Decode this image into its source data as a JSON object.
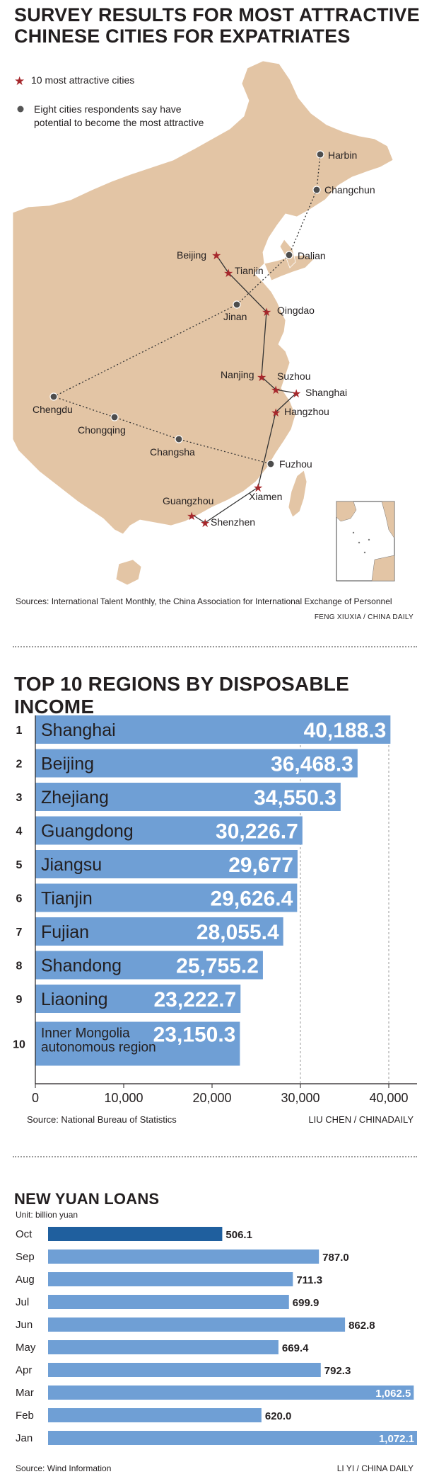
{
  "map_panel": {
    "title_line1": "SURVEY RESULTS FOR MOST ATTRACTIVE",
    "title_line2": "CHINESE CITIES FOR EXPATRIATES",
    "legend": {
      "star_label": "10 most attractive cities",
      "dot_label_line1": "Eight cities respondents say have",
      "dot_label_line2": "potential to become the most attractive"
    },
    "colors": {
      "land": "#e3c5a5",
      "star": "#a6282c",
      "dot": "#555555"
    },
    "star_cities": [
      "Beijing",
      "Tianjin",
      "Qingdao",
      "Nanjing",
      "Suzhou",
      "Shanghai",
      "Hangzhou",
      "Xiamen",
      "Guangzhou",
      "Shenzhen"
    ],
    "dot_cities": [
      "Harbin",
      "Changchun",
      "Dalian",
      "Jinan",
      "Chengdu",
      "Chongqing",
      "Changsha",
      "Fuzhou"
    ],
    "source": "Sources: International Talent Monthly, the China Association for International Exchange of Personnel",
    "credit": "FENG XIUXIA / CHINA DAILY"
  },
  "income_panel": {
    "source": "Source: National Bureau of Statistics",
    "credit": "LIU CHEN / CHINADAILY",
    "chart_data": {
      "type": "bar",
      "orientation": "horizontal",
      "title": "TOP 10 REGIONS BY DISPOSABLE INCOME",
      "ranks": [
        "1",
        "2",
        "3",
        "4",
        "5",
        "6",
        "7",
        "8",
        "9",
        "10"
      ],
      "categories": [
        "Shanghai",
        "Beijing",
        "Zhejiang",
        "Guangdong",
        "Jiangsu",
        "Tianjin",
        "Fujian",
        "Shandong",
        "Liaoning",
        "Inner Mongolia autonomous region"
      ],
      "category_lines": [
        [
          "Shanghai"
        ],
        [
          "Beijing"
        ],
        [
          "Zhejiang"
        ],
        [
          "Guangdong"
        ],
        [
          "Jiangsu"
        ],
        [
          "Tianjin"
        ],
        [
          "Fujian"
        ],
        [
          "Shandong"
        ],
        [
          "Liaoning"
        ],
        [
          "Inner Mongolia",
          "autonomous region"
        ]
      ],
      "values": [
        40188.3,
        36468.3,
        34550.3,
        30226.7,
        29677,
        29626.4,
        28055.4,
        25755.2,
        23222.7,
        23150.3
      ],
      "value_labels": [
        "40,188.3",
        "36,468.3",
        "34,550.3",
        "30,226.7",
        "29,677",
        "29,626.4",
        "28,055.4",
        "25,755.2",
        "23,222.7",
        "23,150.3"
      ],
      "xlim": [
        0,
        40000
      ],
      "xticks": [
        0,
        10000,
        20000,
        30000,
        40000
      ],
      "xtick_labels": [
        "0",
        "10,000",
        "20,000",
        "30,000",
        "40,000"
      ],
      "gridlines": [
        30000,
        40000
      ],
      "bar_color": "#6f9fd5"
    }
  },
  "loans_panel": {
    "unit": "Unit: billion yuan",
    "source": "Source: Wind Information",
    "credit": "LI YI / CHINA DAILY",
    "chart_data": {
      "type": "bar",
      "orientation": "horizontal",
      "title": "NEW YUAN LOANS",
      "categories": [
        "Oct",
        "Sep",
        "Aug",
        "Jul",
        "Jun",
        "May",
        "Apr",
        "Mar",
        "Feb",
        "Jan"
      ],
      "values": [
        506.1,
        787.0,
        711.3,
        699.9,
        862.8,
        669.4,
        792.3,
        1062.5,
        620.0,
        1072.1
      ],
      "value_labels": [
        "506.1",
        "787.0",
        "711.3",
        "699.9",
        "862.8",
        "669.4",
        "792.3",
        "1,062.5",
        "620.0",
        "1,072.1"
      ],
      "xlim": [
        0,
        1072.1
      ],
      "highlight_index": 0,
      "highlight_color": "#1f5f9e",
      "bar_color": "#6f9fd5"
    }
  }
}
